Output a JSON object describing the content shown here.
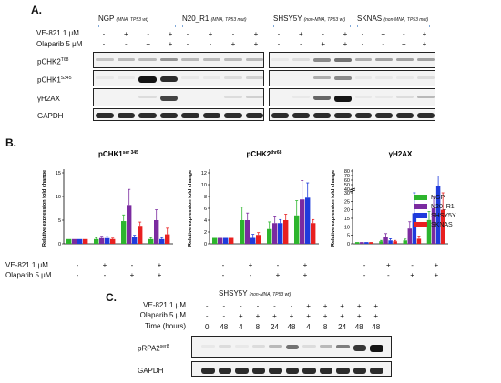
{
  "panelA": {
    "letter": "A.",
    "cell_lines": [
      {
        "name": "NGP",
        "status": "(MNA, TP53 wt)"
      },
      {
        "name": "N20_R1",
        "status": "(MNA, TP53 mut)"
      },
      {
        "name": "SHSY5Y",
        "status": "(non-MNA, TP53 wt)"
      },
      {
        "name": "SKNAS",
        "status": "(non-MNA, TP53 mut)"
      }
    ],
    "treatment_labels": [
      "VE-821 1 μM",
      "Olaparib 5 μM"
    ],
    "ve_signs": [
      "-",
      "+",
      "-",
      "+"
    ],
    "ola_signs": [
      "-",
      "-",
      "+",
      "+"
    ],
    "blot_labels": [
      {
        "base": "pCHK2",
        "sup": "T68"
      },
      {
        "base": "pCHK1",
        "sup": "S345"
      },
      {
        "base": "γH2AX",
        "sup": ""
      },
      {
        "base": "GAPDH",
        "sup": ""
      }
    ],
    "blot_intensity": [
      [
        0.25,
        0.3,
        0.3,
        0.45,
        0.3,
        0.3,
        0.3,
        0.3,
        0.1,
        0.15,
        0.5,
        0.6,
        0.35,
        0.4,
        0.4,
        0.4
      ],
      [
        0.1,
        0.1,
        1.0,
        0.9,
        0.1,
        0.1,
        0.15,
        0.2,
        0.05,
        0.05,
        0.35,
        0.5,
        0.1,
        0.1,
        0.1,
        0.15
      ],
      [
        0.05,
        0.05,
        0.15,
        0.8,
        0.05,
        0.05,
        0.15,
        0.2,
        0.05,
        0.1,
        0.65,
        1.0,
        0.1,
        0.1,
        0.15,
        0.3
      ],
      [
        0.9,
        0.9,
        0.9,
        0.9,
        0.9,
        0.9,
        0.9,
        0.9,
        0.9,
        0.9,
        0.9,
        0.9,
        0.9,
        0.9,
        0.9,
        0.9
      ]
    ]
  },
  "panelB": {
    "letter": "B.",
    "treatment_labels": [
      "VE-821 1 μM",
      "Olaparib 5 μM"
    ],
    "ve_signs": [
      "-",
      "+",
      "-",
      "+"
    ],
    "ola_signs": [
      "-",
      "-",
      "+",
      "+"
    ],
    "legend": [
      {
        "name": "NGP",
        "color": "#2db52d"
      },
      {
        "name": "N20_R1",
        "color": "#7b2ba0"
      },
      {
        "name": "SHSY5Y",
        "color": "#1f3bdc"
      },
      {
        "name": "SKNAS",
        "color": "#e82020"
      }
    ]
  },
  "chart_data": [
    {
      "type": "bar",
      "title": "pCHK1ser 345",
      "ylabel": "Relative expression fold change",
      "categories": [
        "-/-",
        "+/-",
        "-/+",
        "+/+"
      ],
      "ylim": [
        0,
        15
      ],
      "yticks": [
        0,
        5,
        10,
        15
      ],
      "series": [
        {
          "name": "NGP",
          "values": [
            1,
            1,
            4.8,
            1
          ],
          "errors": [
            0,
            0.3,
            1.3,
            0.3
          ]
        },
        {
          "name": "N20_R1",
          "values": [
            1,
            1.2,
            8.2,
            5
          ],
          "errors": [
            0,
            0.4,
            3.3,
            2.2
          ]
        },
        {
          "name": "SHSY5Y",
          "values": [
            1,
            1.2,
            1.4,
            1
          ],
          "errors": [
            0,
            0.3,
            0.4,
            0.3
          ]
        },
        {
          "name": "SKNAS",
          "values": [
            1,
            1,
            3.8,
            2
          ],
          "errors": [
            0,
            0.2,
            0.8,
            1.3
          ]
        }
      ]
    },
    {
      "type": "bar",
      "title": "pCHK2thr68",
      "ylabel": "Relative expression fold change",
      "categories": [
        "-/-",
        "+/-",
        "-/+",
        "+/+"
      ],
      "ylim": [
        0,
        12
      ],
      "yticks": [
        0,
        2,
        4,
        6,
        8,
        10,
        12
      ],
      "series": [
        {
          "name": "NGP",
          "values": [
            1,
            4,
            2.5,
            4.8
          ],
          "errors": [
            0,
            2.2,
            1.2,
            2.5
          ]
        },
        {
          "name": "N20_R1",
          "values": [
            1,
            4,
            3.5,
            7.5
          ],
          "errors": [
            0,
            1.2,
            1.2,
            3.2
          ]
        },
        {
          "name": "SHSY5Y",
          "values": [
            1,
            1,
            3.5,
            7.8
          ],
          "errors": [
            0,
            0.6,
            0.6,
            2.5
          ]
        },
        {
          "name": "SKNAS",
          "values": [
            1,
            1.5,
            4,
            3.5
          ],
          "errors": [
            0,
            0.4,
            1,
            0.6
          ]
        }
      ]
    },
    {
      "type": "bar",
      "title": "γH2AX",
      "ylabel": "Relative expression fold change",
      "categories": [
        "-/-",
        "+/-",
        "-/+",
        "+/+"
      ],
      "ylim": [
        0,
        80
      ],
      "yticks": [
        0,
        5,
        10,
        15,
        20,
        25,
        30,
        40,
        50,
        60,
        70,
        80
      ],
      "axis_break": true,
      "series": [
        {
          "name": "NGP",
          "values": [
            1,
            1.5,
            2,
            14
          ],
          "errors": [
            0,
            0.5,
            0.8,
            5
          ]
        },
        {
          "name": "N20_R1",
          "values": [
            1,
            4,
            9,
            21
          ],
          "errors": [
            0,
            2,
            4,
            7
          ]
        },
        {
          "name": "SHSY5Y",
          "values": [
            1,
            2,
            18,
            47
          ],
          "errors": [
            0,
            1,
            12,
            22
          ]
        },
        {
          "name": "SKNAS",
          "values": [
            1,
            1.5,
            3,
            20
          ],
          "errors": [
            0,
            0.5,
            1.5,
            12
          ]
        }
      ]
    }
  ],
  "panelC": {
    "letter": "C.",
    "cell_line": "SHSY5Y",
    "status": "(non-MNA, TP53 wt)",
    "row_labels": [
      "VE-821 1 μM",
      "Olaparib 5 μM",
      "Time (hours)"
    ],
    "ve_signs": [
      "-",
      "-",
      "-",
      "-",
      "-",
      "-",
      "+",
      "+",
      "+",
      "+",
      "+"
    ],
    "ola_signs": [
      "-",
      "-",
      "+",
      "+",
      "+",
      "+",
      "+",
      "+",
      "+",
      "+",
      "+"
    ],
    "times": [
      "0",
      "48",
      "4",
      "8",
      "24",
      "48",
      "4",
      "8",
      "24",
      "48",
      "48"
    ],
    "blot_labels": [
      {
        "base": "pRPA2",
        "sup": "ser8"
      },
      {
        "base": "GAPDH",
        "sup": ""
      }
    ],
    "blot_intensity": [
      [
        0.1,
        0.15,
        0.1,
        0.15,
        0.3,
        0.6,
        0.15,
        0.3,
        0.55,
        0.85,
        1.0
      ],
      [
        0.9,
        0.9,
        0.9,
        0.9,
        0.9,
        0.9,
        0.9,
        0.9,
        0.9,
        0.9,
        0.9
      ]
    ]
  }
}
